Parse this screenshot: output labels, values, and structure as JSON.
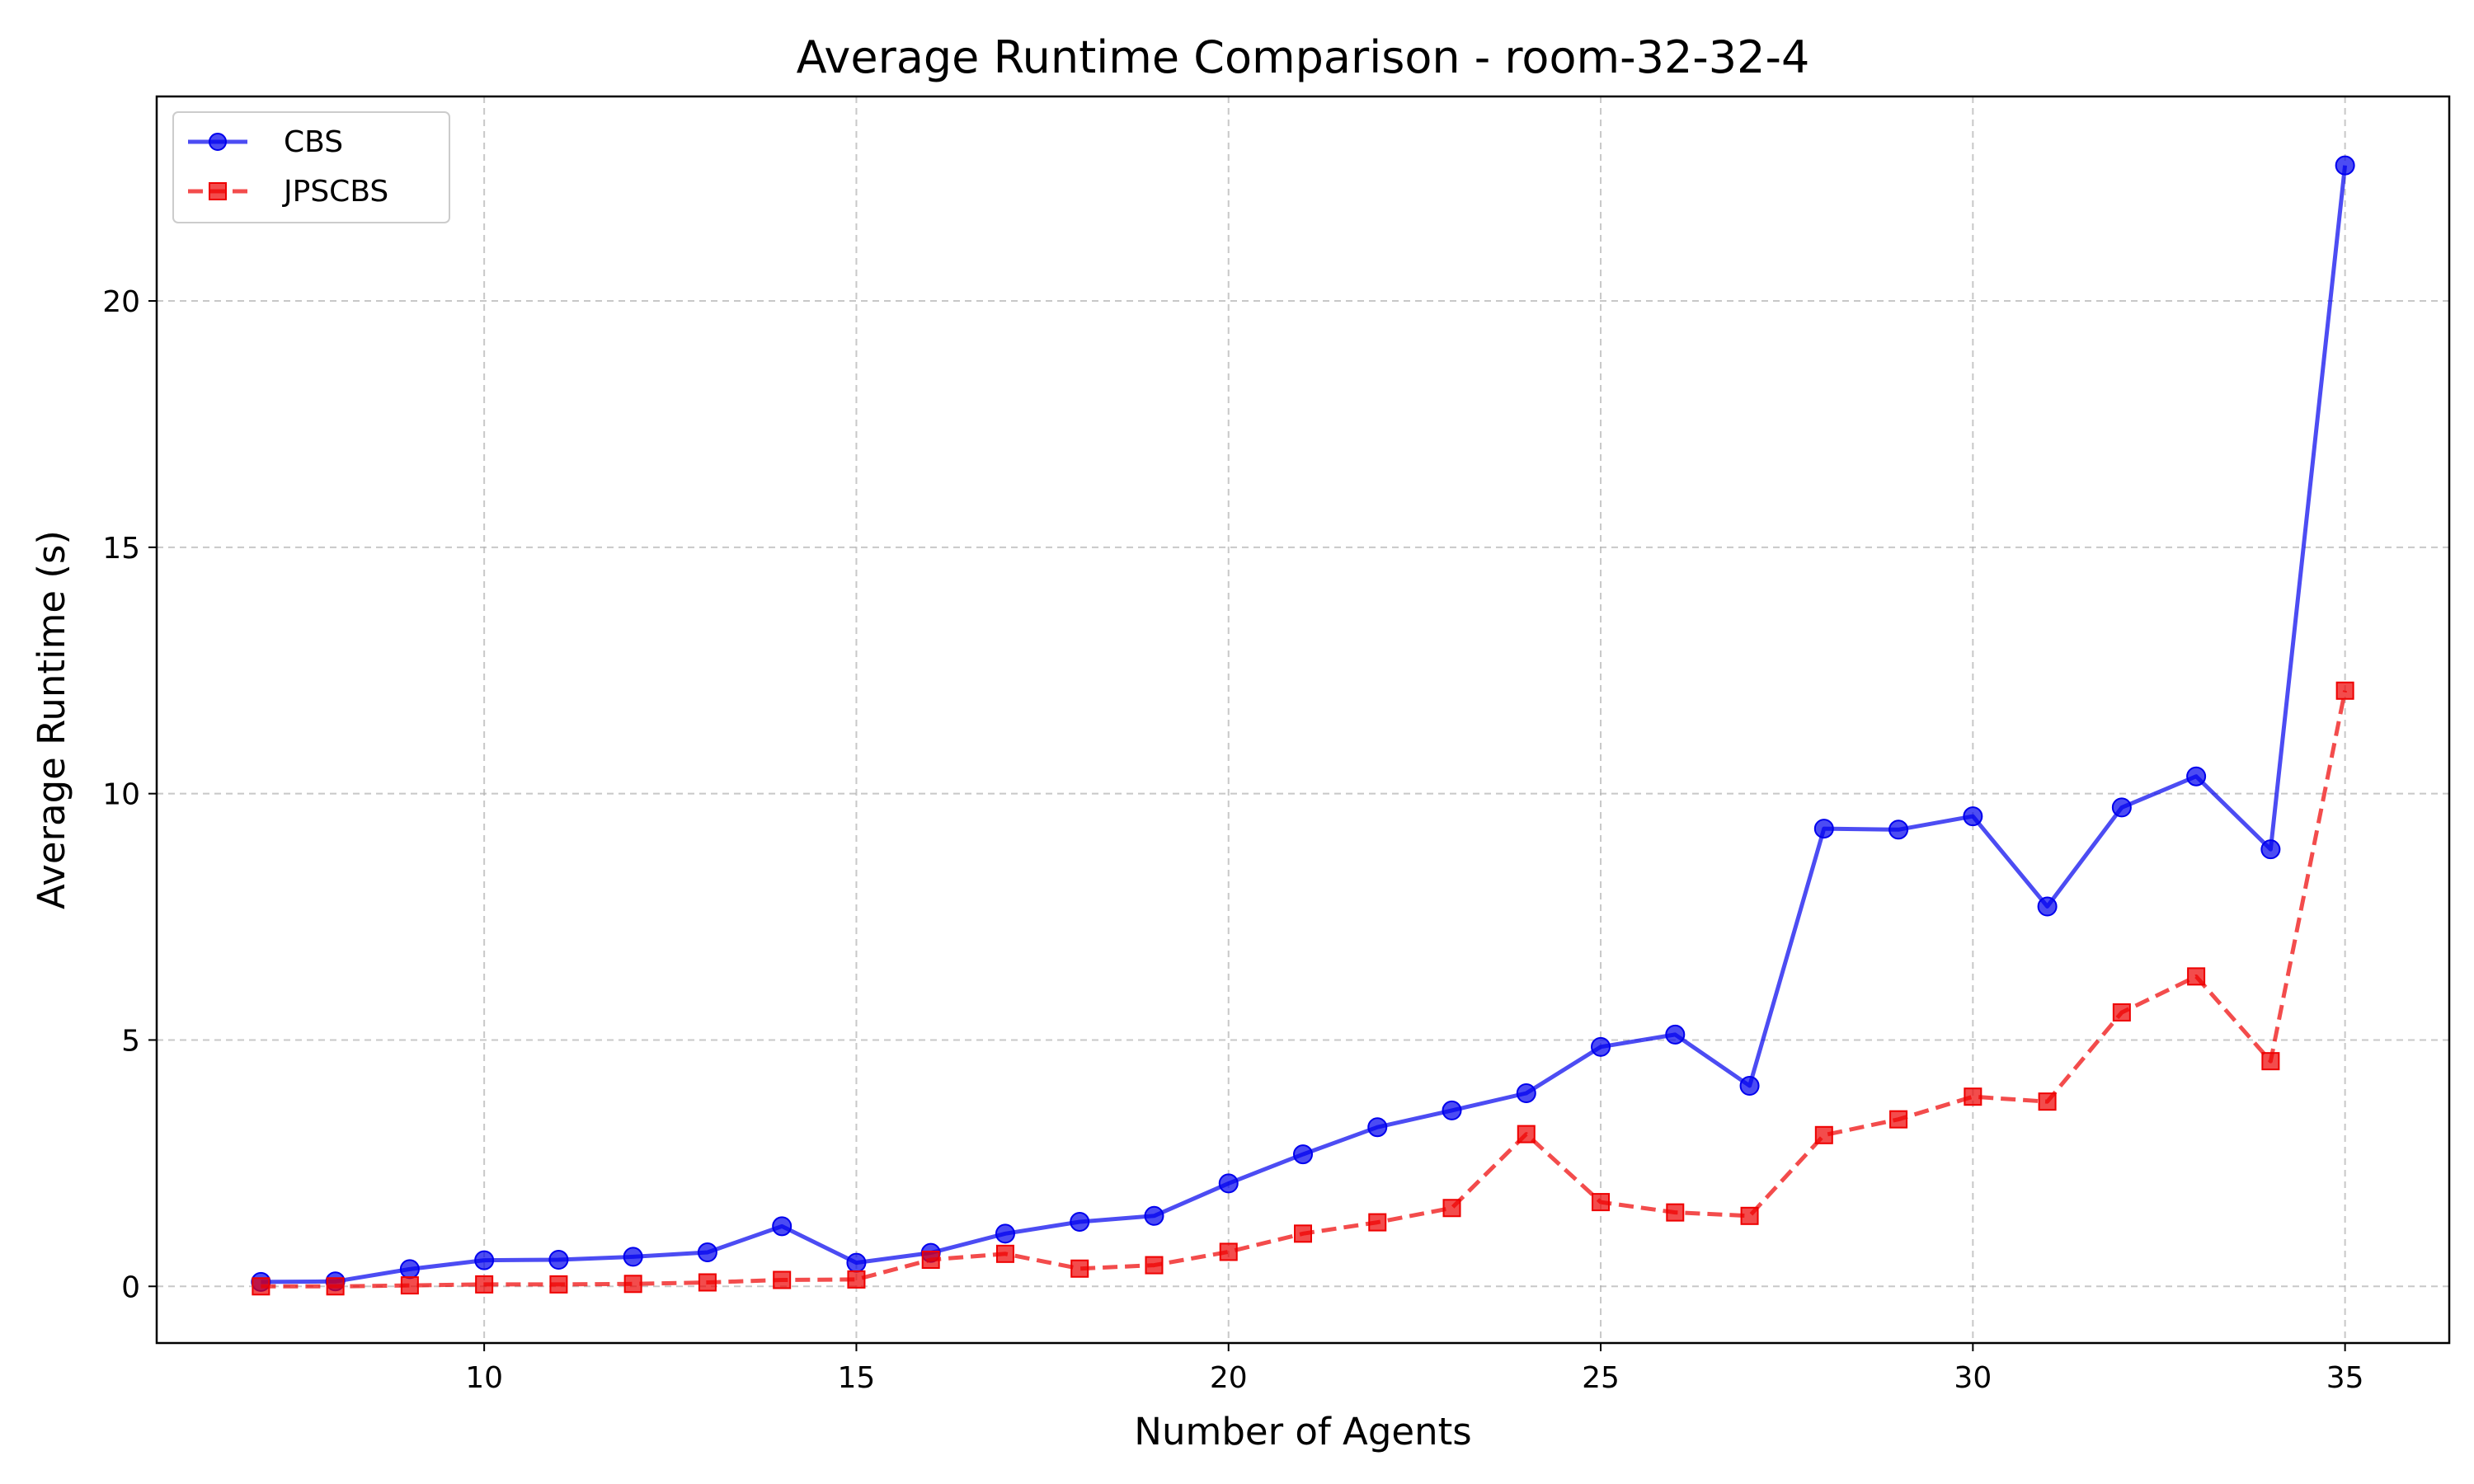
{
  "chart_data": {
    "type": "line",
    "title": "Average Runtime Comparison - room-32-32-4",
    "xlabel": "Number of Agents",
    "ylabel": "Average Runtime (s)",
    "xlim": [
      5.6,
      36.4
    ],
    "ylim": [
      -1.15,
      24.15
    ],
    "xticks": [
      10,
      15,
      20,
      25,
      30,
      35
    ],
    "yticks": [
      0,
      5,
      10,
      15,
      20
    ],
    "grid": true,
    "legend_position": "upper-left",
    "x": [
      7,
      8,
      9,
      10,
      11,
      12,
      13,
      14,
      15,
      16,
      17,
      18,
      19,
      20,
      21,
      22,
      23,
      24,
      25,
      26,
      27,
      28,
      29,
      30,
      31,
      32,
      33,
      34,
      35
    ],
    "series": [
      {
        "name": "CBS",
        "color": "#0000ee",
        "marker": "circle",
        "line_style": "solid",
        "values": [
          0.09,
          0.1,
          0.35,
          0.53,
          0.54,
          0.6,
          0.69,
          1.22,
          0.48,
          0.68,
          1.07,
          1.31,
          1.43,
          2.09,
          2.68,
          3.23,
          3.57,
          3.92,
          4.86,
          5.11,
          4.07,
          9.29,
          9.27,
          9.54,
          7.71,
          9.72,
          10.35,
          8.87,
          22.75
        ]
      },
      {
        "name": "JPSCBS",
        "color": "#ee0000",
        "marker": "square",
        "line_style": "dashed",
        "values": [
          0.0,
          0.0,
          0.02,
          0.04,
          0.04,
          0.05,
          0.08,
          0.13,
          0.14,
          0.54,
          0.66,
          0.36,
          0.43,
          0.7,
          1.07,
          1.3,
          1.59,
          3.09,
          1.71,
          1.5,
          1.43,
          3.07,
          3.39,
          3.85,
          3.75,
          5.56,
          6.29,
          4.57,
          12.09
        ]
      }
    ]
  }
}
